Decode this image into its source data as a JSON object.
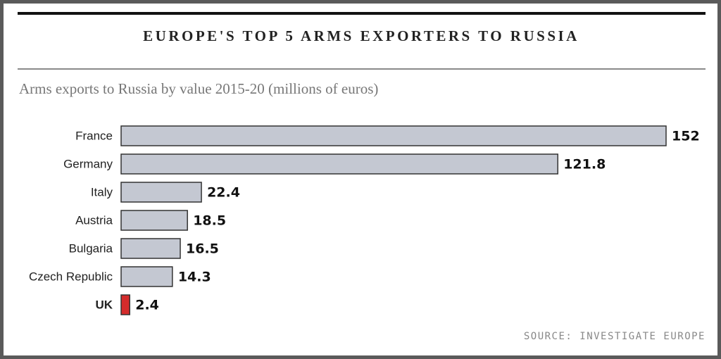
{
  "chart_data": {
    "type": "hbar",
    "title": "EUROPE'S TOP 5 ARMS EXPORTERS TO RUSSIA",
    "subtitle": "Arms exports to Russia by value 2015-20 (millions of euros)",
    "categories": [
      "France",
      "Germany",
      "Italy",
      "Austria",
      "Bulgaria",
      "Czech Republic",
      "UK"
    ],
    "values": [
      152,
      121.8,
      22.4,
      18.5,
      16.5,
      14.3,
      2.4
    ],
    "colors": [
      "#c4c8d2",
      "#c4c8d2",
      "#c4c8d2",
      "#c4c8d2",
      "#c4c8d2",
      "#c4c8d2",
      "#d42b2b"
    ],
    "highlight": "UK",
    "source": "SOURCE: INVESTIGATE EUROPE"
  }
}
